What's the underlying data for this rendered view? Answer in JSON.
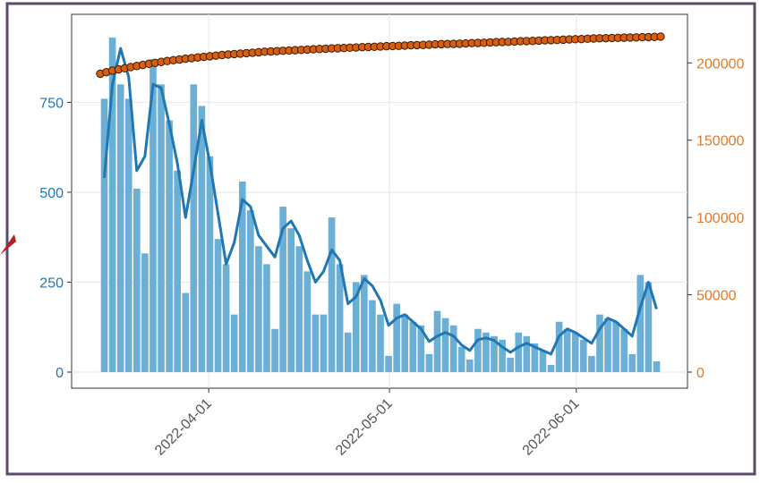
{
  "chart_data": {
    "type": "bar",
    "title": "",
    "xlabel": "",
    "ylabel_left": "",
    "ylabel_right": "",
    "x_start": "2022-03-14",
    "x_end": "2022-06-15",
    "x_ticks": [
      {
        "date": "2022-04-01",
        "label": "2022-04-01"
      },
      {
        "date": "2022-05-01",
        "label": "2022-05-01"
      },
      {
        "date": "2022-06-01",
        "label": "2022-06-01"
      }
    ],
    "ylim_left": [
      0,
      950
    ],
    "ylim_right": [
      0,
      221000
    ],
    "y_ticks_left": [
      0,
      250,
      500,
      750
    ],
    "y_ticks_right": [
      0,
      50000,
      100000,
      150000,
      200000
    ],
    "grid": true,
    "colors": {
      "bars": "#6baed6",
      "line": "#1f77b4",
      "points": "#d95f0e",
      "point_edge": "#3a1a05",
      "right_axis": "#e07b2a",
      "left_axis": "#1f77b4",
      "frame": "#5b4a6b"
    },
    "series": [
      {
        "kind": "bar",
        "axis": "left",
        "values": [
          760,
          930,
          800,
          760,
          510,
          330,
          870,
          800,
          700,
          560,
          220,
          800,
          740,
          600,
          370,
          300,
          160,
          530,
          450,
          350,
          300,
          120,
          460,
          400,
          350,
          280,
          160,
          160,
          430,
          300,
          110,
          250,
          270,
          200,
          160,
          45,
          190,
          160,
          140,
          130,
          50,
          170,
          150,
          130,
          70,
          35,
          120,
          110,
          100,
          90,
          40,
          110,
          100,
          80,
          60,
          20,
          140,
          120,
          110,
          90,
          45,
          160,
          150,
          140,
          120,
          50,
          270,
          250,
          30
        ]
      },
      {
        "kind": "line",
        "axis": "left",
        "values": [
          540,
          800,
          900,
          820,
          560,
          600,
          800,
          790,
          690,
          580,
          430,
          560,
          700,
          580,
          440,
          300,
          360,
          480,
          460,
          380,
          350,
          320,
          400,
          420,
          380,
          310,
          250,
          280,
          340,
          310,
          190,
          210,
          260,
          240,
          200,
          130,
          150,
          160,
          140,
          120,
          85,
          100,
          110,
          100,
          75,
          60,
          90,
          95,
          88,
          70,
          55,
          70,
          80,
          70,
          60,
          50,
          100,
          120,
          110,
          95,
          80,
          120,
          150,
          140,
          120,
          100,
          180,
          250,
          175
        ]
      },
      {
        "kind": "points",
        "axis": "right",
        "values": [
          193000,
          194000,
          195000,
          195800,
          196500,
          197300,
          198000,
          198700,
          199400,
          200000,
          200600,
          201200,
          201700,
          202200,
          202700,
          203100,
          203500,
          203900,
          204300,
          204700,
          205100,
          205400,
          205700,
          206000,
          206300,
          206600,
          206900,
          207200,
          207400,
          207600,
          207800,
          208000,
          208200,
          208400,
          208600,
          208800,
          209000,
          209200,
          209400,
          209500,
          209600,
          209800,
          210000,
          210200,
          210300,
          210400,
          210600,
          210800,
          210900,
          211000,
          211200,
          211400,
          211500,
          211600,
          211800,
          212000,
          212100,
          212200,
          212300,
          212400,
          212600,
          212800,
          212900,
          213000,
          213200,
          213400,
          213500,
          213600,
          213800,
          214000,
          214100,
          214200,
          214400,
          214600,
          214700,
          214800,
          215000,
          215200,
          215300,
          215400,
          215600,
          215800,
          215900,
          216000,
          216100,
          216200,
          216300,
          216400,
          216500,
          216600,
          216700,
          216800,
          217000
        ]
      }
    ]
  }
}
